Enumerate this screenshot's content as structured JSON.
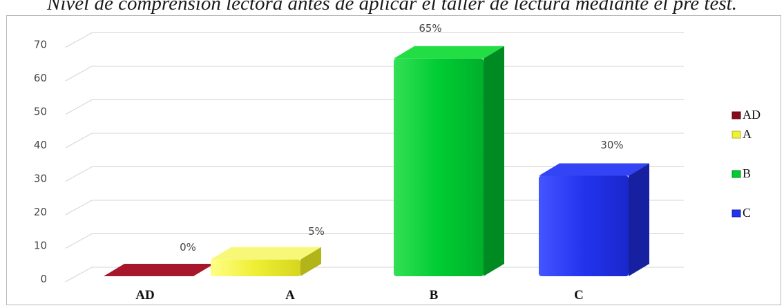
{
  "title": "Nivel de comprensión lectora antes de aplicar el taller de lectura mediante el pre test.",
  "chart_data": {
    "type": "bar",
    "title": "Nivel de comprensión lectora antes de aplicar el taller de lectura mediante el pre test.",
    "categories": [
      "AD",
      "A",
      "B",
      "C"
    ],
    "values": [
      0,
      5,
      65,
      30
    ],
    "data_labels": [
      "0%",
      "5%",
      "65%",
      "30%"
    ],
    "colors": [
      "#8b0a1e",
      "#f0f03c",
      "#00cc33",
      "#2233ee"
    ],
    "side_colors": [
      "#5a0512",
      "#b3b31a",
      "#008a22",
      "#1620a0"
    ],
    "top_colors": [
      "#a8162c",
      "#f8f878",
      "#22dd44",
      "#3344f5"
    ],
    "yticks": [
      0,
      10,
      20,
      30,
      40,
      50,
      60,
      70
    ],
    "ylim": [
      0,
      70
    ],
    "xlabel": "",
    "ylabel": "",
    "legend_position": "right",
    "legend": [
      "AD",
      "A",
      "B",
      "C"
    ],
    "grid": true
  }
}
